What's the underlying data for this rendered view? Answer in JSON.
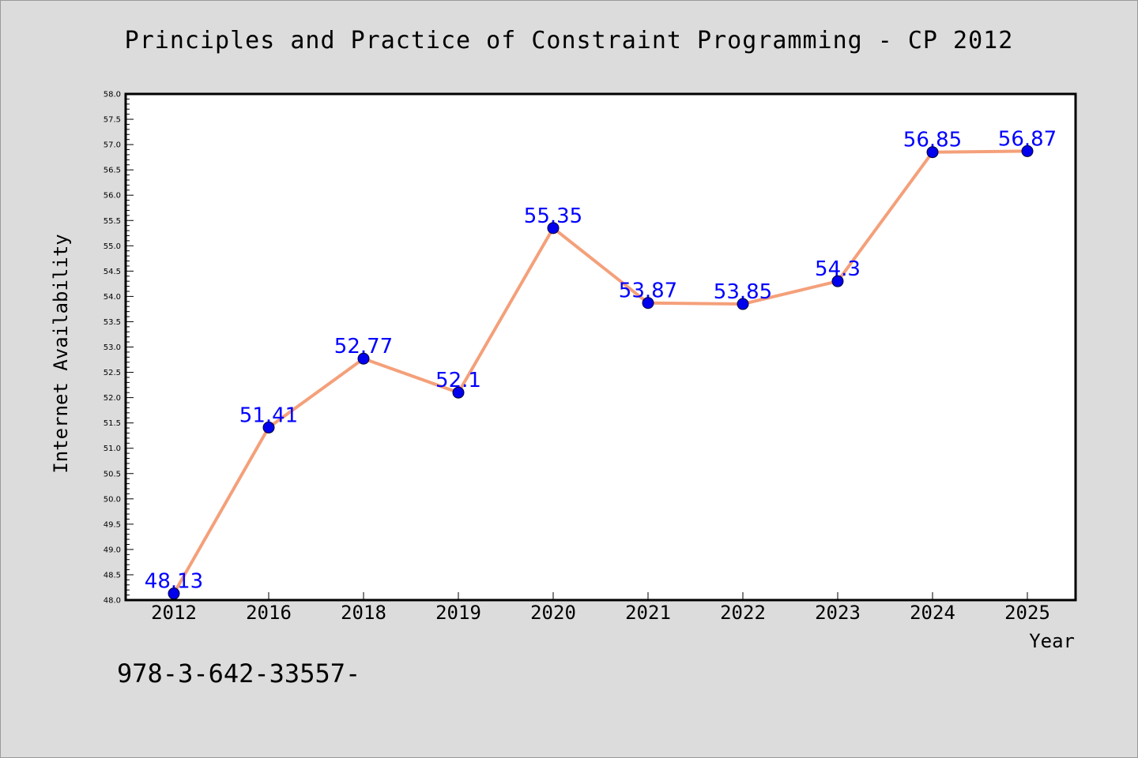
{
  "chart_data": {
    "type": "line",
    "title": "Principles and Practice of Constraint Programming - CP 2012",
    "xlabel": "Year",
    "ylabel": "Internet Availability",
    "categories": [
      "2012",
      "2016",
      "2018",
      "2019",
      "2020",
      "2021",
      "2022",
      "2023",
      "2024",
      "2025"
    ],
    "values": [
      48.13,
      51.41,
      52.77,
      52.1,
      55.35,
      53.87,
      53.85,
      54.3,
      56.85,
      56.87
    ],
    "data_labels": [
      "48.13",
      "51.41",
      "52.77",
      "52.1",
      "55.35",
      "53.87",
      "53.85",
      "54.3",
      "56.85",
      "56.87"
    ],
    "ylim": [
      48.0,
      58.0
    ],
    "ytick_step": 0.5,
    "grid": false,
    "line_color": "#f4a07a",
    "marker_color": "#0000ee",
    "label_color": "#0000ff"
  },
  "footnote": "978-3-642-33557-"
}
